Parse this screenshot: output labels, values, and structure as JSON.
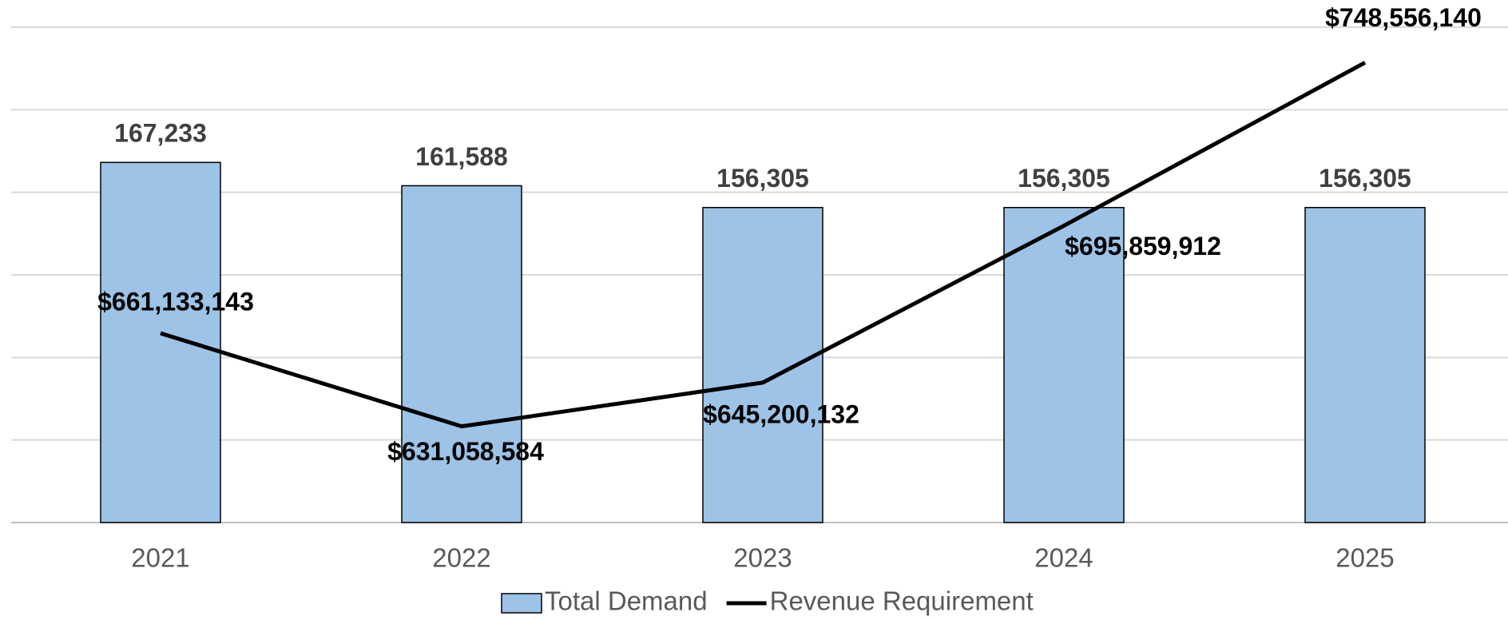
{
  "chart_data": {
    "type": "bar-line",
    "categories": [
      "2021",
      "2022",
      "2023",
      "2024",
      "2025"
    ],
    "series": [
      {
        "name": "Total Demand",
        "type": "bar",
        "color": "#9dc3e6",
        "values": [
          167233,
          161588,
          156305,
          156305,
          156305
        ],
        "value_labels": [
          "167,233",
          "161,588",
          "156,305",
          "156,305",
          "156,305"
        ]
      },
      {
        "name": "Revenue Requirement",
        "type": "line",
        "axis": "y2",
        "color": "#000000",
        "values": [
          661133143,
          631058584,
          645200132,
          695859912,
          748556140
        ],
        "value_labels": [
          "$661,133,143",
          "$631,058,584",
          "$645,200,132",
          "$695,859,912",
          "$748,556,140"
        ]
      }
    ],
    "ylim": [
      80000,
      200000
    ],
    "yticks": [
      80000,
      100000,
      120000,
      140000,
      160000,
      180000,
      200000
    ],
    "y2lim": [
      600000000,
      760000000
    ],
    "grid": true,
    "legend": "bottom"
  }
}
